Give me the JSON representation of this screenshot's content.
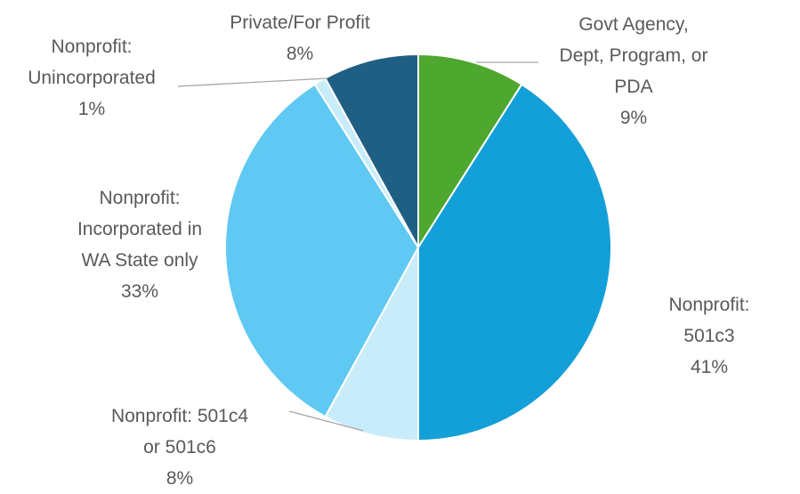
{
  "chart_data": {
    "type": "pie",
    "categories": [
      "Govt Agency,\nDept, Program, or\nPDA",
      "Nonprofit: 501c3",
      "Nonprofit: 501c4\nor 501c6",
      "Nonprofit:\nIncorporated in\nWA State only",
      "Nonprofit:\nUnincorporated",
      "Private/For Profit"
    ],
    "values": [
      9,
      41,
      8,
      33,
      1,
      8
    ],
    "value_labels": [
      "9%",
      "41%",
      "8%",
      "33%",
      "1%",
      "8%"
    ],
    "colors": [
      "#4ea72e",
      "#139fd8",
      "#c9ecfa",
      "#5fc9f3",
      "#c9ecfa",
      "#1f5f84"
    ]
  }
}
